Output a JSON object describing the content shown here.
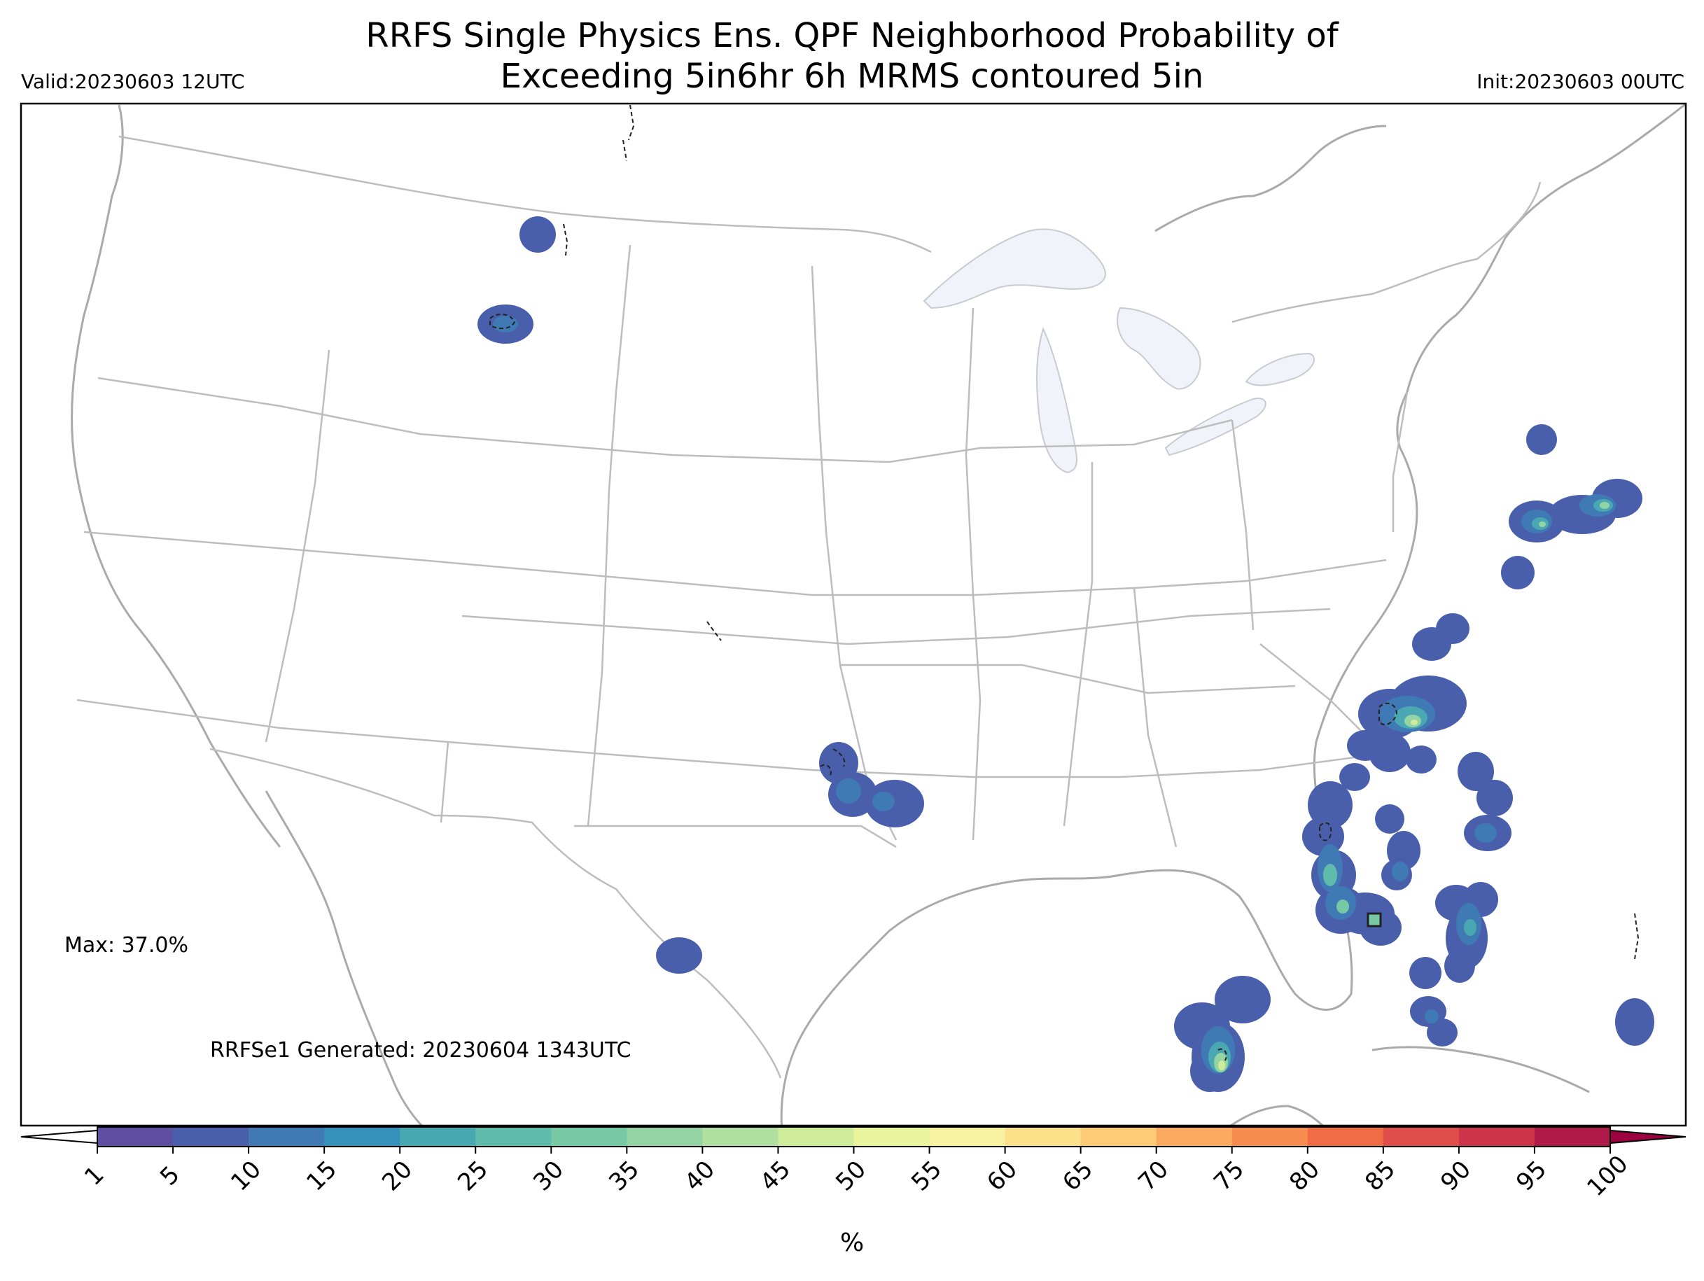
{
  "title": {
    "line1": "RRFS Single Physics Ens. QPF Neighborhood Probability of",
    "line2": "Exceeding 5in6hr 6h MRMS contoured 5in"
  },
  "valid_label": "Valid:20230603 12UTC",
  "init_label": "Init:20230603 00UTC",
  "max_label": "Max: 37.0%",
  "generated_label": "RRFSe1 Generated: 20230604 1343UTC",
  "colorbar": {
    "unit": "%",
    "ticks": [
      "1",
      "5",
      "10",
      "15",
      "20",
      "25",
      "30",
      "35",
      "40",
      "45",
      "50",
      "55",
      "60",
      "65",
      "70",
      "75",
      "80",
      "85",
      "90",
      "95",
      "100"
    ],
    "colors": [
      "#5e4fa2",
      "#4a5fac",
      "#3f7ab5",
      "#3792bb",
      "#4aa8b2",
      "#5fbbaa",
      "#77c8a4",
      "#93d3a4",
      "#b1df9f",
      "#cfeb9c",
      "#e9f59d",
      "#f8f1a0",
      "#fde08a",
      "#fdca76",
      "#fcaa5f",
      "#f88c50",
      "#ef6c45",
      "#e04e4a",
      "#cd3349",
      "#b01a48"
    ],
    "extend_low_color": "#ffffff",
    "extend_high_color": "#9e0142"
  },
  "probability_areas": [
    {
      "name": "montana-east",
      "max_pct": 5
    },
    {
      "name": "montana-southwest",
      "max_pct": 15
    },
    {
      "name": "north-texas",
      "max_pct": 15
    },
    {
      "name": "west-texas",
      "max_pct": 5
    },
    {
      "name": "gulf-of-mexico",
      "max_pct": 37
    },
    {
      "name": "florida-west-coast",
      "max_pct": 30
    },
    {
      "name": "south-carolina-coast",
      "max_pct": 30
    },
    {
      "name": "atlantic-offshore",
      "max_pct": 30
    },
    {
      "name": "bahamas",
      "max_pct": 15
    }
  ]
}
